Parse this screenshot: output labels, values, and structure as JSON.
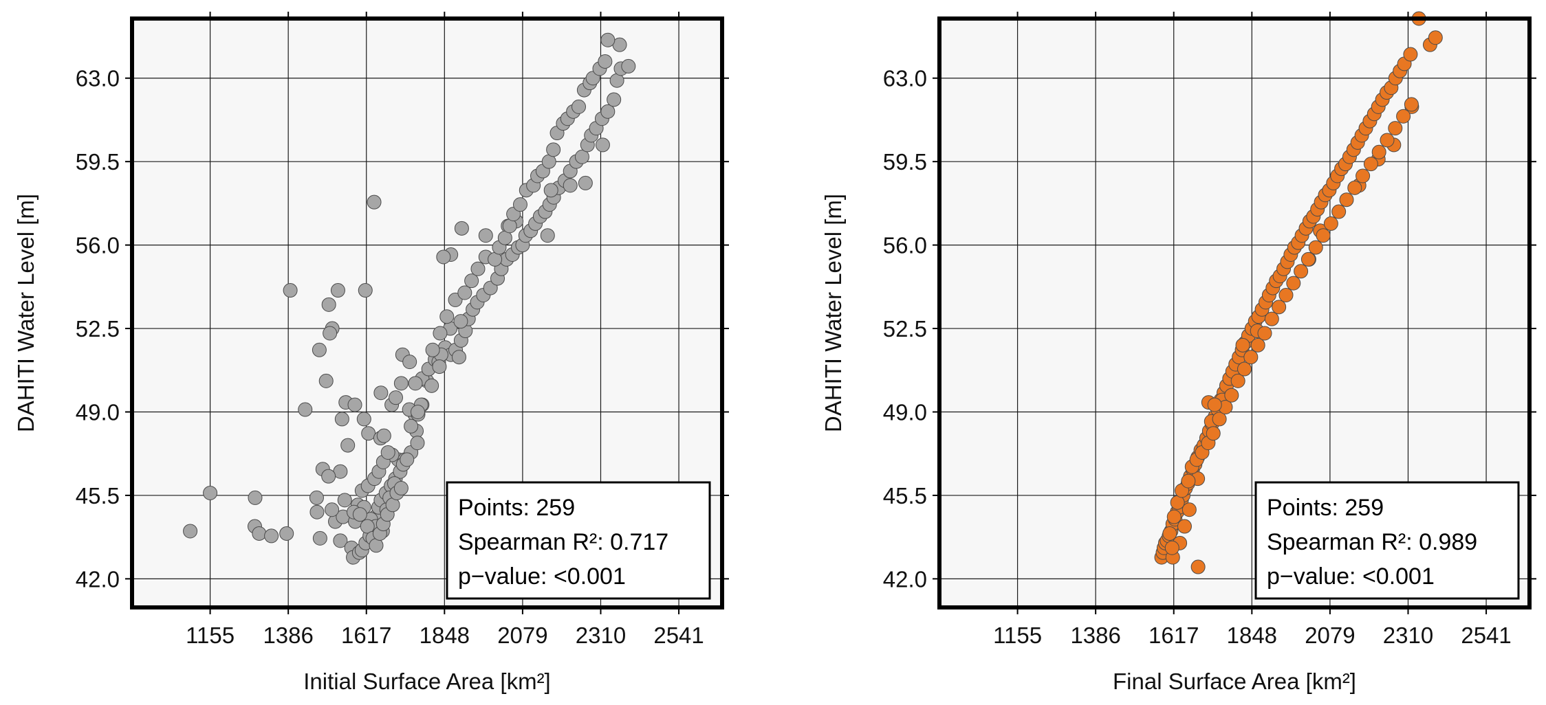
{
  "chart_data": [
    {
      "type": "scatter",
      "xlabel": "Initial Surface Area [km²]",
      "ylabel": "DAHITI Water Level [m]",
      "xlim": [
        924,
        2669
      ],
      "ylim": [
        40.8,
        65.5
      ],
      "xticks": [
        1155,
        1386,
        1617,
        1848,
        2079,
        2310,
        2541
      ],
      "yticks": [
        "42.0",
        "45.5",
        "49.0",
        "52.5",
        "56.0",
        "59.5",
        "63.0"
      ],
      "grid": true,
      "marker_color": "#a6a6a6",
      "stats_box": {
        "position": "bottom-right",
        "lines": [
          "Points: 259",
          "Spearman R²: 0.717",
          "p−value: <0.001"
        ]
      },
      "points": [
        [
          1096,
          44.0
        ],
        [
          1155,
          45.6
        ],
        [
          1288,
          45.4
        ],
        [
          1287,
          44.2
        ],
        [
          1300,
          43.9
        ],
        [
          1336,
          43.8
        ],
        [
          1381,
          43.9
        ],
        [
          1480,
          43.7
        ],
        [
          1540,
          43.6
        ],
        [
          1525,
          44.4
        ],
        [
          1548,
          44.6
        ],
        [
          1584,
          44.4
        ],
        [
          1573,
          43.3
        ],
        [
          1578,
          42.9
        ],
        [
          1596,
          43.1
        ],
        [
          1604,
          43.2
        ],
        [
          1615,
          43.5
        ],
        [
          1627,
          43.8
        ],
        [
          1632,
          44.2
        ],
        [
          1644,
          44.6
        ],
        [
          1653,
          45.0
        ],
        [
          1660,
          45.3
        ],
        [
          1675,
          45.6
        ],
        [
          1690,
          45.9
        ],
        [
          1703,
          46.2
        ],
        [
          1717,
          46.5
        ],
        [
          1711,
          47.0
        ],
        [
          1693,
          47.2
        ],
        [
          1731,
          47.0
        ],
        [
          1749,
          47.3
        ],
        [
          1765,
          48.2
        ],
        [
          1760,
          48.9
        ],
        [
          1744,
          49.1
        ],
        [
          1770,
          48.9
        ],
        [
          1782,
          49.3
        ],
        [
          1796,
          50.3
        ],
        [
          1782,
          50.4
        ],
        [
          1762,
          50.2
        ],
        [
          1801,
          50.8
        ],
        [
          1820,
          51.2
        ],
        [
          1831,
          51.1
        ],
        [
          1850,
          51.7
        ],
        [
          1867,
          51.4
        ],
        [
          1881,
          51.6
        ],
        [
          1897,
          52.0
        ],
        [
          1910,
          52.4
        ],
        [
          1919,
          52.9
        ],
        [
          1932,
          53.3
        ],
        [
          1945,
          53.6
        ],
        [
          1963,
          53.9
        ],
        [
          1984,
          54.2
        ],
        [
          2005,
          54.6
        ],
        [
          2016,
          55.0
        ],
        [
          2032,
          55.4
        ],
        [
          2049,
          55.6
        ],
        [
          2066,
          55.9
        ],
        [
          2079,
          56.0
        ],
        [
          2088,
          56.4
        ],
        [
          2103,
          56.6
        ],
        [
          2117,
          56.9
        ],
        [
          2131,
          57.2
        ],
        [
          2146,
          57.4
        ],
        [
          2159,
          57.7
        ],
        [
          2171,
          58.0
        ],
        [
          2186,
          58.4
        ],
        [
          2204,
          58.7
        ],
        [
          2220,
          59.1
        ],
        [
          2238,
          59.5
        ],
        [
          2255,
          59.7
        ],
        [
          2271,
          60.2
        ],
        [
          2282,
          60.6
        ],
        [
          2297,
          60.9
        ],
        [
          2314,
          61.3
        ],
        [
          2331,
          61.6
        ],
        [
          2349,
          62.1
        ],
        [
          2358,
          62.9
        ],
        [
          2370,
          63.4
        ],
        [
          2392,
          63.5
        ],
        [
          2366,
          64.4
        ],
        [
          2331,
          64.6
        ],
        [
          2316,
          60.2
        ],
        [
          2265,
          58.6
        ],
        [
          2220,
          58.5
        ],
        [
          2163,
          58.3
        ],
        [
          2153,
          56.4
        ],
        [
          2060,
          57.0
        ],
        [
          2036,
          56.8
        ],
        [
          1970,
          56.4
        ],
        [
          1899,
          56.7
        ],
        [
          1867,
          55.6
        ],
        [
          1845,
          55.5
        ],
        [
          1865,
          52.5
        ],
        [
          1896,
          52.8
        ],
        [
          1891,
          51.3
        ],
        [
          1838,
          51.4
        ],
        [
          1833,
          50.9
        ],
        [
          1810,
          50.1
        ],
        [
          1779,
          49.3
        ],
        [
          1769,
          49.0
        ],
        [
          1749,
          48.4
        ],
        [
          1692,
          49.3
        ],
        [
          1660,
          49.8
        ],
        [
          1640,
          57.8
        ],
        [
          1614,
          54.1
        ],
        [
          1533,
          54.1
        ],
        [
          1506,
          53.5
        ],
        [
          1516,
          52.5
        ],
        [
          1509,
          52.3
        ],
        [
          1478,
          51.6
        ],
        [
          1498,
          50.3
        ],
        [
          1436,
          49.1
        ],
        [
          1392,
          54.1
        ],
        [
          1556,
          49.4
        ],
        [
          1583,
          49.3
        ],
        [
          1610,
          48.7
        ],
        [
          1623,
          48.1
        ],
        [
          1545,
          48.7
        ],
        [
          1562,
          47.6
        ],
        [
          1540,
          46.5
        ],
        [
          1488,
          46.6
        ],
        [
          1505,
          46.3
        ],
        [
          1470,
          45.4
        ],
        [
          1471,
          44.8
        ],
        [
          1515,
          44.9
        ],
        [
          1553,
          45.3
        ],
        [
          1592,
          45.1
        ],
        [
          1610,
          45.0
        ],
        [
          1630,
          44.5
        ],
        [
          1645,
          44.2
        ],
        [
          1665,
          44.0
        ],
        [
          1677,
          44.9
        ],
        [
          1686,
          45.4
        ],
        [
          1700,
          46.0
        ],
        [
          1726,
          46.8
        ],
        [
          1737,
          47.0
        ],
        [
          1768,
          47.7
        ],
        [
          1580,
          44.8
        ],
        [
          1598,
          44.7
        ],
        [
          1620,
          44.2
        ],
        [
          1636,
          43.7
        ],
        [
          1646,
          43.4
        ],
        [
          1657,
          43.9
        ],
        [
          1667,
          44.3
        ],
        [
          1679,
          44.7
        ],
        [
          1695,
          45.1
        ],
        [
          1707,
          45.6
        ],
        [
          1720,
          45.8
        ],
        [
          1604,
          45.7
        ],
        [
          1622,
          45.9
        ],
        [
          1641,
          46.2
        ],
        [
          1654,
          46.5
        ],
        [
          1667,
          46.9
        ],
        [
          1681,
          47.3
        ],
        [
          1659,
          47.9
        ],
        [
          1669,
          48.0
        ],
        [
          1704,
          49.6
        ],
        [
          1720,
          50.2
        ],
        [
          1724,
          51.4
        ],
        [
          1745,
          51.1
        ],
        [
          1813,
          51.6
        ],
        [
          1835,
          52.3
        ],
        [
          1855,
          53.0
        ],
        [
          1880,
          53.7
        ],
        [
          1908,
          54.0
        ],
        [
          1928,
          54.5
        ],
        [
          1947,
          55.0
        ],
        [
          1970,
          55.5
        ],
        [
          1997,
          55.4
        ],
        [
          2010,
          55.9
        ],
        [
          2027,
          56.3
        ],
        [
          2041,
          56.8
        ],
        [
          2052,
          57.3
        ],
        [
          2072,
          57.7
        ],
        [
          2090,
          58.3
        ],
        [
          2111,
          58.5
        ],
        [
          2123,
          58.9
        ],
        [
          2139,
          59.1
        ],
        [
          2157,
          59.5
        ],
        [
          2170,
          60.0
        ],
        [
          2181,
          60.7
        ],
        [
          2199,
          61.1
        ],
        [
          2212,
          61.3
        ],
        [
          2229,
          61.6
        ],
        [
          2245,
          61.8
        ],
        [
          2261,
          62.5
        ],
        [
          2278,
          62.8
        ],
        [
          2287,
          63.0
        ],
        [
          2307,
          63.4
        ],
        [
          2323,
          63.7
        ]
      ]
    },
    {
      "type": "scatter",
      "xlabel": "Final Surface Area [km²]",
      "ylabel": "DAHITI Water Level [m]",
      "xlim": [
        924,
        2669
      ],
      "ylim": [
        40.8,
        65.5
      ],
      "xticks": [
        1155,
        1386,
        1617,
        1848,
        2079,
        2310,
        2541
      ],
      "yticks": [
        "42.0",
        "45.5",
        "49.0",
        "52.5",
        "56.0",
        "59.5",
        "63.0"
      ],
      "grid": true,
      "marker_color": "#e87722",
      "stats_box": {
        "position": "bottom-right",
        "lines": [
          "Points: 259",
          "Spearman R²: 0.989",
          "p−value: <0.001"
        ]
      },
      "points": [
        [
          1581,
          42.9
        ],
        [
          1585,
          43.1
        ],
        [
          1588,
          43.3
        ],
        [
          1592,
          43.5
        ],
        [
          1597,
          43.6
        ],
        [
          1603,
          43.8
        ],
        [
          1609,
          44.0
        ],
        [
          1614,
          44.3
        ],
        [
          1621,
          44.5
        ],
        [
          1627,
          44.8
        ],
        [
          1633,
          45.0
        ],
        [
          1640,
          45.3
        ],
        [
          1645,
          45.5
        ],
        [
          1652,
          45.8
        ],
        [
          1659,
          46.0
        ],
        [
          1666,
          46.3
        ],
        [
          1673,
          46.6
        ],
        [
          1680,
          46.8
        ],
        [
          1688,
          47.1
        ],
        [
          1697,
          47.4
        ],
        [
          1706,
          47.6
        ],
        [
          1714,
          47.9
        ],
        [
          1722,
          48.2
        ],
        [
          1730,
          48.5
        ],
        [
          1739,
          48.8
        ],
        [
          1747,
          49.1
        ],
        [
          1756,
          49.5
        ],
        [
          1765,
          49.8
        ],
        [
          1773,
          50.1
        ],
        [
          1782,
          50.4
        ],
        [
          1791,
          50.7
        ],
        [
          1800,
          51.0
        ],
        [
          1810,
          51.3
        ],
        [
          1819,
          51.6
        ],
        [
          1828,
          51.9
        ],
        [
          1838,
          52.2
        ],
        [
          1848,
          52.5
        ],
        [
          1858,
          52.8
        ],
        [
          1868,
          53.0
        ],
        [
          1878,
          53.3
        ],
        [
          1889,
          53.6
        ],
        [
          1899,
          53.9
        ],
        [
          1910,
          54.2
        ],
        [
          1920,
          54.5
        ],
        [
          1931,
          54.7
        ],
        [
          1942,
          55.0
        ],
        [
          1953,
          55.3
        ],
        [
          1963,
          55.6
        ],
        [
          1974,
          55.9
        ],
        [
          1985,
          56.1
        ],
        [
          1996,
          56.4
        ],
        [
          2008,
          56.7
        ],
        [
          2019,
          57.0
        ],
        [
          2030,
          57.2
        ],
        [
          2042,
          57.5
        ],
        [
          2053,
          57.8
        ],
        [
          2065,
          58.1
        ],
        [
          2077,
          58.3
        ],
        [
          2089,
          58.6
        ],
        [
          2101,
          58.9
        ],
        [
          2113,
          59.2
        ],
        [
          2125,
          59.4
        ],
        [
          2137,
          59.7
        ],
        [
          2149,
          60.0
        ],
        [
          2161,
          60.3
        ],
        [
          2173,
          60.6
        ],
        [
          2185,
          60.9
        ],
        [
          2197,
          61.2
        ],
        [
          2210,
          61.5
        ],
        [
          2222,
          61.8
        ],
        [
          2234,
          62.1
        ],
        [
          2247,
          62.4
        ],
        [
          2260,
          62.6
        ],
        [
          2273,
          63.0
        ],
        [
          2286,
          63.3
        ],
        [
          2299,
          63.6
        ],
        [
          2317,
          64.0
        ],
        [
          2342,
          65.5
        ],
        [
          2375,
          64.4
        ],
        [
          2391,
          64.7
        ],
        [
          2321,
          61.8
        ],
        [
          2268,
          60.2
        ],
        [
          2222,
          59.6
        ],
        [
          2165,
          58.5
        ],
        [
          2050,
          56.6
        ],
        [
          2017,
          55.4
        ],
        [
          1864,
          52.4
        ],
        [
          1821,
          51.8
        ],
        [
          1760,
          49.5
        ],
        [
          1728,
          48.6
        ],
        [
          1688,
          46.2
        ],
        [
          1663,
          44.9
        ],
        [
          1649,
          44.2
        ],
        [
          1635,
          43.5
        ],
        [
          1614,
          42.9
        ],
        [
          1612,
          43.3
        ],
        [
          1605,
          43.9
        ],
        [
          1618,
          44.6
        ],
        [
          1628,
          45.2
        ],
        [
          1641,
          45.7
        ],
        [
          1660,
          46.1
        ],
        [
          1671,
          46.7
        ],
        [
          1685,
          47.0
        ],
        [
          1701,
          47.3
        ],
        [
          1719,
          47.7
        ],
        [
          1734,
          48.1
        ],
        [
          1752,
          48.7
        ],
        [
          1770,
          49.2
        ],
        [
          1788,
          49.7
        ],
        [
          1807,
          50.3
        ],
        [
          1826,
          50.8
        ],
        [
          1845,
          51.3
        ],
        [
          1866,
          51.8
        ],
        [
          1886,
          52.3
        ],
        [
          1907,
          52.9
        ],
        [
          1928,
          53.4
        ],
        [
          1949,
          53.9
        ],
        [
          1971,
          54.4
        ],
        [
          1993,
          54.9
        ],
        [
          2015,
          55.4
        ],
        [
          2037,
          55.9
        ],
        [
          2059,
          56.4
        ],
        [
          2082,
          56.9
        ],
        [
          2105,
          57.4
        ],
        [
          2128,
          57.9
        ],
        [
          2152,
          58.4
        ],
        [
          2176,
          58.9
        ],
        [
          2200,
          59.4
        ],
        [
          2224,
          59.9
        ],
        [
          2248,
          60.4
        ],
        [
          2272,
          60.9
        ],
        [
          2296,
          61.4
        ],
        [
          2320,
          61.9
        ],
        [
          1720,
          49.4
        ],
        [
          1738,
          49.3
        ],
        [
          1689,
          42.5
        ]
      ]
    }
  ]
}
